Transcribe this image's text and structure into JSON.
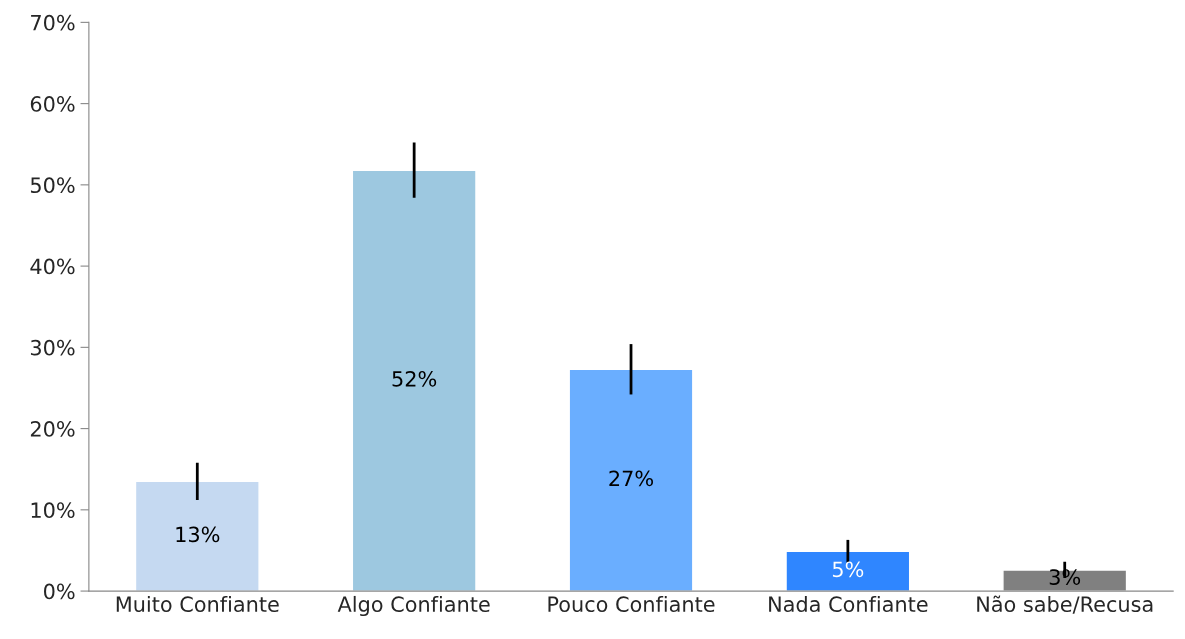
{
  "chart_data": {
    "type": "bar",
    "categories": [
      "Muito Confiante",
      "Algo Confiante",
      "Pouco Confiante",
      "Nada Confiante",
      "Não sabe/Recusa"
    ],
    "values": [
      13.5,
      51.8,
      27.3,
      4.9,
      2.6
    ],
    "errors": [
      2.3,
      3.4,
      3.1,
      1.4,
      1.0
    ],
    "colors": [
      "#c5d9f1",
      "#9dc8e0",
      "#6aaeff",
      "#2f86ff",
      "#808080"
    ],
    "value_labels": [
      "13%",
      "52%",
      "27%",
      "5%",
      "3%"
    ],
    "ylim": [
      0,
      70
    ],
    "yticks": [
      {
        "value": 0,
        "label": "0%"
      },
      {
        "value": 10,
        "label": "10%"
      },
      {
        "value": 20,
        "label": "20%"
      },
      {
        "value": 30,
        "label": "30%"
      },
      {
        "value": 40,
        "label": "40%"
      },
      {
        "value": 50,
        "label": "50%"
      },
      {
        "value": 60,
        "label": "60%"
      },
      {
        "value": 70,
        "label": "70%"
      }
    ],
    "grid": false,
    "legend": false
  }
}
